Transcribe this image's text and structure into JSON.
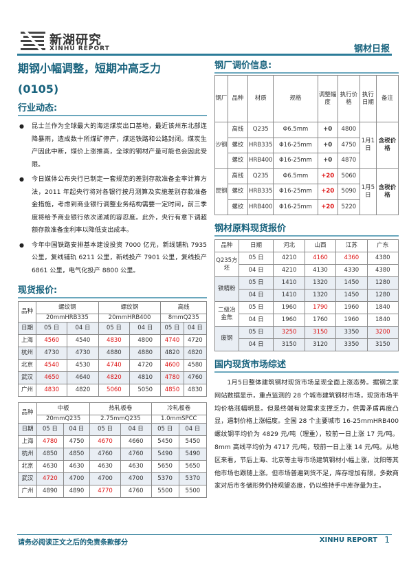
{
  "header": {
    "brand_cn": "新湖研究",
    "brand_en": "XINHU REPORT",
    "doc_type": "钢材日报"
  },
  "main_title": "期钢小幅调整，短期冲高乏力",
  "date_code": "(0105)",
  "industry": {
    "title": "行业动态:",
    "items": [
      "昆士兰作为全球最大的海运煤炭出口基地，最近该州东北部连降暴雨，造成数十所煤矿停产，煤运铁路和公路封闭。煤炭生产因此中断，煤价上涨推高，全球的钢材产量可能也会因此受限。",
      "今日媒体公布央行已制定一套规范的差别存款准备金率计算方法，2011 年起央行将对各银行按月测算及实施差别存款准备金措施，考虑到商业银行调整业务结构需要一定时间，前三季度将给予商业银行依次递减的容忍度。此外，央行有意下调超额存款准备金利率以降低支出成本。",
      "今年中国铁路安排基本建设投资 7000 亿元，新线铺轨 7935 公里，复线铺轨 6211 公里，新线投产 7901 公里，复线投产 6861 公里，电气化投产 8800 公里。"
    ]
  },
  "spot": {
    "title": "现货报价:",
    "table1": {
      "corner": "品种",
      "products": [
        {
          "name": "螺纹钢",
          "spec": "20mmHRB335"
        },
        {
          "name": "螺纹钢",
          "spec": "20mmHRB400"
        },
        {
          "name": "高线",
          "spec": "8mmQ235"
        }
      ],
      "date_label": "日期",
      "dates": [
        "05 日",
        "04 日",
        "05 日",
        "04 日",
        "05 日",
        "04 日"
      ],
      "rows": [
        {
          "city": "上海",
          "v": [
            "4560",
            "4540",
            "4830",
            "4800",
            "4740",
            "4720"
          ]
        },
        {
          "city": "杭州",
          "v": [
            "4730",
            "4730",
            "4880",
            "4880",
            "4820",
            "4820"
          ]
        },
        {
          "city": "北京",
          "v": [
            "4540",
            "4530",
            "4740",
            "4720",
            "4600",
            "4580"
          ]
        },
        {
          "city": "武汉",
          "v": [
            "4650",
            "4640",
            "4820",
            "4810",
            "4780",
            "4760"
          ]
        },
        {
          "city": "广州",
          "v": [
            "4830",
            "4820",
            "5060",
            "5050",
            "4850",
            "4830"
          ]
        }
      ]
    },
    "table2": {
      "corner": "品种",
      "products": [
        {
          "name": "中板",
          "spec": "20mmQ235"
        },
        {
          "name": "热轧板卷",
          "spec": "2.75mmQ235"
        },
        {
          "name": "冷轧板卷",
          "spec": "1.0mmSPCC"
        }
      ],
      "date_label": "日期",
      "dates": [
        "05 日",
        "04 日",
        "05 日",
        "04 日",
        "05 日",
        "04 日"
      ],
      "rows": [
        {
          "city": "上海",
          "v": [
            "4780",
            "4750",
            "4670",
            "4660",
            "5450",
            "5450"
          ]
        },
        {
          "city": "杭州",
          "v": [
            "4850",
            "4850",
            "4760",
            "4760",
            "5490",
            "5490"
          ]
        },
        {
          "city": "北京",
          "v": [
            "4630",
            "4630",
            "4630",
            "4630",
            "5650",
            "5650"
          ]
        },
        {
          "city": "武汉",
          "v": [
            "4720",
            "4700",
            "4700",
            "4700",
            "5370",
            "5370"
          ]
        },
        {
          "city": "广州",
          "v": [
            "4890",
            "4890",
            "4770",
            "4760",
            "5500",
            "5500"
          ]
        }
      ]
    }
  },
  "mill": {
    "title": "钢厂调价信息:",
    "headers": [
      "钢厂",
      "品种",
      "材质",
      "规格",
      "调整幅度",
      "执行价格",
      "执行日期",
      "备注"
    ],
    "groups": [
      {
        "mill": "沙钢",
        "date": "1月1日",
        "note": "含税价格",
        "rows": [
          {
            "product": "高线",
            "grade": "Q235",
            "spec": "Φ6.5mm",
            "adj": "+0",
            "price": "4800"
          },
          {
            "product": "螺纹",
            "grade": "HRB335",
            "spec": "Φ16-25mm",
            "adj": "+0",
            "price": "4750"
          },
          {
            "product": "螺纹",
            "grade": "HRB400",
            "spec": "Φ16-25mm",
            "adj": "+0",
            "price": "4870"
          }
        ]
      },
      {
        "mill": "昆钢",
        "date": "1月5日",
        "note": "含税价格",
        "rows": [
          {
            "product": "高线",
            "grade": "Q235",
            "spec": "Φ6.5mm",
            "adj": "+20",
            "price": "5060"
          },
          {
            "product": "螺纹",
            "grade": "HRB335",
            "spec": "Φ16-25mm",
            "adj": "+20",
            "price": "5090"
          },
          {
            "product": "螺纹",
            "grade": "HRB400",
            "spec": "Φ16-25mm",
            "adj": "+20",
            "price": "5220"
          }
        ]
      }
    ]
  },
  "raw": {
    "title": "钢材原料现货报价",
    "headers": [
      "品种",
      "日期",
      "河北",
      "山西",
      "江苏",
      "广东"
    ],
    "groups": [
      {
        "name": "Q235方坯",
        "rows": [
          {
            "date": "05 日",
            "v": [
              "4210",
              "4160",
              "4360",
              "4380"
            ],
            "red": [
              false,
              true,
              true,
              false
            ]
          },
          {
            "date": "04 日",
            "v": [
              "4210",
              "4130",
              "4330",
              "4380"
            ],
            "red": [
              false,
              false,
              false,
              false
            ]
          }
        ]
      },
      {
        "name": "铁精粉",
        "rows": [
          {
            "date": "05 日",
            "v": [
              "1410",
              "1320",
              "1450",
              "1280"
            ],
            "red": [
              false,
              false,
              false,
              false
            ]
          },
          {
            "date": "04 日",
            "v": [
              "1410",
              "1320",
              "1450",
              "1280"
            ],
            "red": [
              false,
              false,
              false,
              false
            ]
          }
        ]
      },
      {
        "name": "二级冶金焦",
        "rows": [
          {
            "date": "05 日",
            "v": [
              "1960",
              "1790",
              "1960",
              "1840"
            ],
            "red": [
              false,
              true,
              false,
              false
            ]
          },
          {
            "date": "04 日",
            "v": [
              "1960",
              "1760",
              "1960",
              "1840"
            ],
            "red": [
              false,
              false,
              false,
              false
            ]
          }
        ]
      },
      {
        "name": "废钢",
        "rows": [
          {
            "date": "05 日",
            "v": [
              "3250",
              "3150",
              "3350",
              "3200"
            ],
            "red": [
              true,
              true,
              false,
              true
            ]
          },
          {
            "date": "04 日",
            "v": [
              "3150",
              "3120",
              "3350",
              "3150"
            ],
            "red": [
              false,
              false,
              false,
              false
            ]
          }
        ]
      }
    ]
  },
  "market": {
    "title": "国内现货市场综述",
    "text": "1月5日整体建筑钢材现货市场呈现全面上涨态势。据钢之家网站数据显示，重点监测的 28 个城市建筑钢材市场，现货市场平均价格涨幅明显。但是终端有效需求支撑乏力，供需矛盾再度凸显，遏制价格上涨幅度。全国 28 个主要城市 16-25mmHRB400 螺纹钢平均价为 4829 元/吨（理重），较前一日上涨 17 元/吨。8mm 高线平均价为 4717 元/吨，较前一日上涨 14 元/吨。从地区来看，节后上海、北京等主导市场建筑钢材小幅上涨，沈阳等其他市场也跟随上涨。但市场普遍到货不足，库存增加有限，多数商家对后市冬储形势仍持观望态度，仍以维持手中库存量为主。"
  },
  "footer": {
    "disclaimer": "请务必阅读正文之后的免责条款部分",
    "brand": "XINHU REPORT",
    "page": "1"
  }
}
